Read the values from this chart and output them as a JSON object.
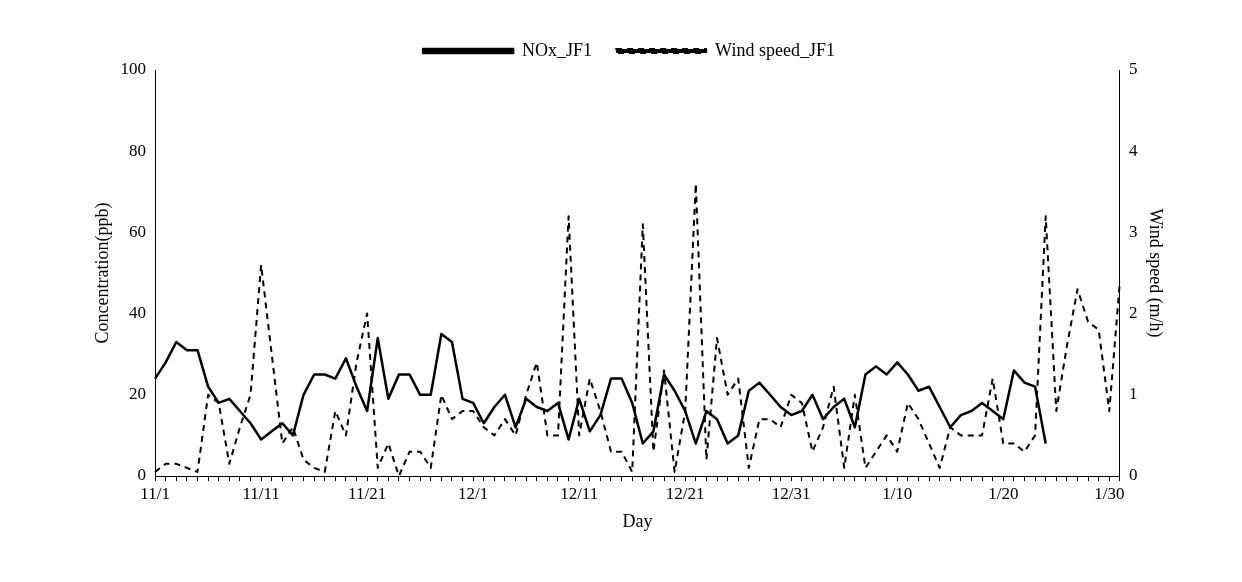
{
  "chart_data": {
    "type": "line",
    "xlabel": "Day",
    "ylabel": "Concentration(ppb)",
    "y2label": "Wind speed (m/h)",
    "categories": [
      "11/1",
      null,
      null,
      null,
      null,
      null,
      null,
      null,
      null,
      null,
      "11/11",
      null,
      null,
      null,
      null,
      null,
      null,
      null,
      null,
      null,
      "11/21",
      null,
      null,
      null,
      null,
      null,
      null,
      null,
      null,
      null,
      "12/1",
      null,
      null,
      null,
      null,
      null,
      null,
      null,
      null,
      null,
      "12/11",
      null,
      null,
      null,
      null,
      null,
      null,
      null,
      null,
      null,
      "12/21",
      null,
      null,
      null,
      null,
      null,
      null,
      null,
      null,
      null,
      "12/31",
      null,
      null,
      null,
      null,
      null,
      null,
      null,
      null,
      null,
      "1/10",
      null,
      null,
      null,
      null,
      null,
      null,
      null,
      null,
      null,
      "1/20",
      null,
      null,
      null,
      null,
      null,
      null,
      null,
      null,
      null,
      "1/30",
      null
    ],
    "ylim": [
      0,
      100
    ],
    "yticks": [
      0,
      20,
      40,
      60,
      80,
      100
    ],
    "y2lim": [
      0,
      5
    ],
    "y2ticks": [
      0,
      1,
      2,
      3,
      4,
      5
    ],
    "grid": false,
    "legend": "top",
    "marker": "none",
    "series": [
      {
        "name": "NOx_JF1",
        "color": "#000000",
        "line_style": "solid",
        "values": [
          24,
          28,
          33,
          31,
          31,
          22,
          18,
          19,
          16,
          13,
          9,
          11,
          13,
          10,
          20,
          25,
          25,
          24,
          29,
          22,
          16,
          34,
          19,
          25,
          25,
          20,
          20,
          35,
          33,
          19,
          18,
          13,
          17,
          20,
          12,
          19,
          17,
          16,
          18,
          9,
          19,
          11,
          15,
          24,
          24,
          18,
          8,
          11,
          25,
          21,
          16,
          8,
          16,
          14,
          8,
          10,
          21,
          23,
          20,
          17,
          15,
          16,
          20,
          14,
          17,
          19,
          12,
          25,
          27,
          25,
          28,
          25,
          21,
          22,
          17,
          12,
          15,
          16,
          18,
          16,
          14,
          26,
          23,
          22,
          8,
          null,
          null,
          null,
          null,
          null,
          null,
          null
        ]
      },
      {
        "name": "Wind speed_JF1",
        "color": "#000000",
        "line_style": "dashed",
        "axis": "y2",
        "values": [
          0.05,
          0.15,
          0.15,
          0.1,
          0.05,
          1.0,
          0.9,
          0.15,
          0.6,
          1.0,
          2.6,
          1.5,
          0.4,
          0.6,
          0.2,
          0.1,
          0.05,
          0.8,
          0.5,
          1.4,
          2.0,
          0.1,
          0.4,
          0.0,
          0.3,
          0.3,
          0.1,
          1.0,
          0.7,
          0.8,
          0.8,
          0.6,
          0.5,
          0.7,
          0.5,
          1.0,
          1.4,
          0.5,
          0.5,
          3.2,
          0.5,
          1.2,
          0.8,
          0.3,
          0.3,
          0.05,
          3.1,
          0.3,
          1.3,
          0.05,
          0.8,
          3.6,
          0.2,
          1.7,
          1.0,
          1.2,
          0.1,
          0.7,
          0.7,
          0.6,
          1.0,
          0.9,
          0.3,
          0.6,
          1.1,
          0.1,
          1.0,
          0.1,
          0.3,
          0.5,
          0.3,
          0.9,
          0.7,
          0.4,
          0.1,
          0.6,
          0.5,
          0.5,
          0.5,
          1.2,
          0.4,
          0.4,
          0.3,
          0.5,
          3.2,
          0.8,
          1.6,
          2.3,
          1.9,
          1.8,
          0.8,
          2.4
        ]
      }
    ]
  }
}
